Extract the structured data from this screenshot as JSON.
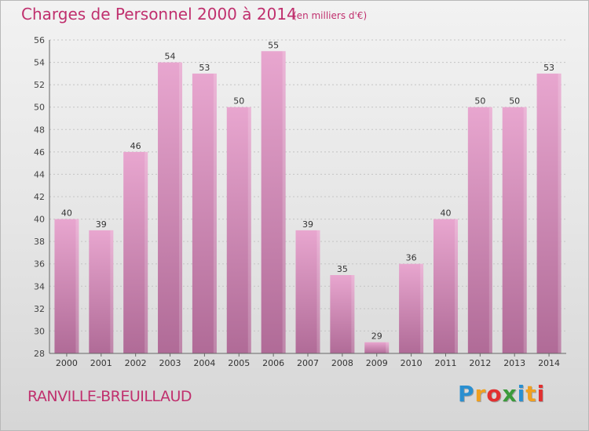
{
  "header": {
    "title": "Charges de Personnel 2000 à 2014",
    "subtitle": "(en milliers d'€)"
  },
  "footer": {
    "commune": "RANVILLE-BREUILLAUD",
    "logo_letters": [
      "P",
      "r",
      "o",
      "x",
      "i",
      "t",
      "i"
    ],
    "logo_colors": [
      "#2a8fd0",
      "#f0a020",
      "#e23030",
      "#3a9a3a",
      "#2a8fd0",
      "#f0a020",
      "#e23030"
    ]
  },
  "colors": {
    "bar_light": "#e8a6cf",
    "bar_dark": "#b06b97",
    "title": "#c0306e",
    "axis": "#444444"
  },
  "chart_data": {
    "type": "bar",
    "title": "Charges de Personnel 2000 à 2014",
    "subtitle": "(en milliers d'€)",
    "categories": [
      "2000",
      "2001",
      "2002",
      "2003",
      "2004",
      "2005",
      "2006",
      "2007",
      "2008",
      "2009",
      "2010",
      "2011",
      "2012",
      "2013",
      "2014"
    ],
    "values": [
      40,
      39,
      46,
      54,
      53,
      50,
      55,
      39,
      35,
      29,
      36,
      40,
      50,
      50,
      53
    ],
    "ylim": [
      28,
      56
    ],
    "yticks": [
      28,
      30,
      32,
      34,
      36,
      38,
      40,
      42,
      44,
      46,
      48,
      50,
      52,
      54,
      56
    ],
    "grid": true,
    "data_labels": true
  }
}
